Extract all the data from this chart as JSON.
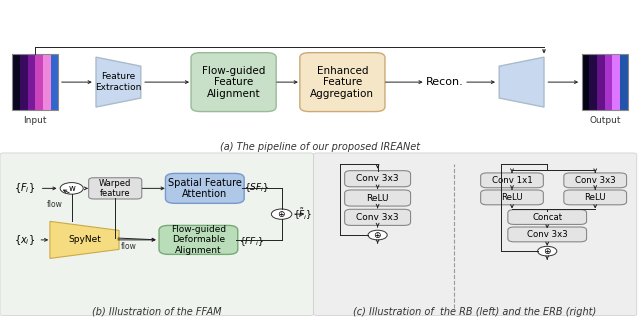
{
  "fig_width": 6.4,
  "fig_height": 3.22,
  "dpi": 100,
  "bg_color": "#ffffff",
  "caption_a": "(a) The pipeline of our proposed IREANet",
  "caption_b": "(b) Illustration of the FFAM",
  "caption_c": "(c) Illustration of  the RB (left) and the ERB (right)",
  "green_box": "#c8dfc8",
  "green_ec": "#99bb99",
  "orange_box": "#f5e6c8",
  "orange_ec": "#ccaa77",
  "blue_box": "#c8d8ee",
  "blue_ec": "#8899bb",
  "blue_sfa": "#b0c8e8",
  "blue_sfa_ec": "#7799cc",
  "green_fda": "#b8ddb8",
  "green_fda_ec": "#77aa77",
  "yellow_spy": "#f5dc80",
  "yellow_spy_ec": "#ccaa44",
  "gray_box": "#e4e4e4",
  "gray_ec": "#888888",
  "panel_bg_left": "#eef3ee",
  "panel_bg_right": "#eeeeee"
}
